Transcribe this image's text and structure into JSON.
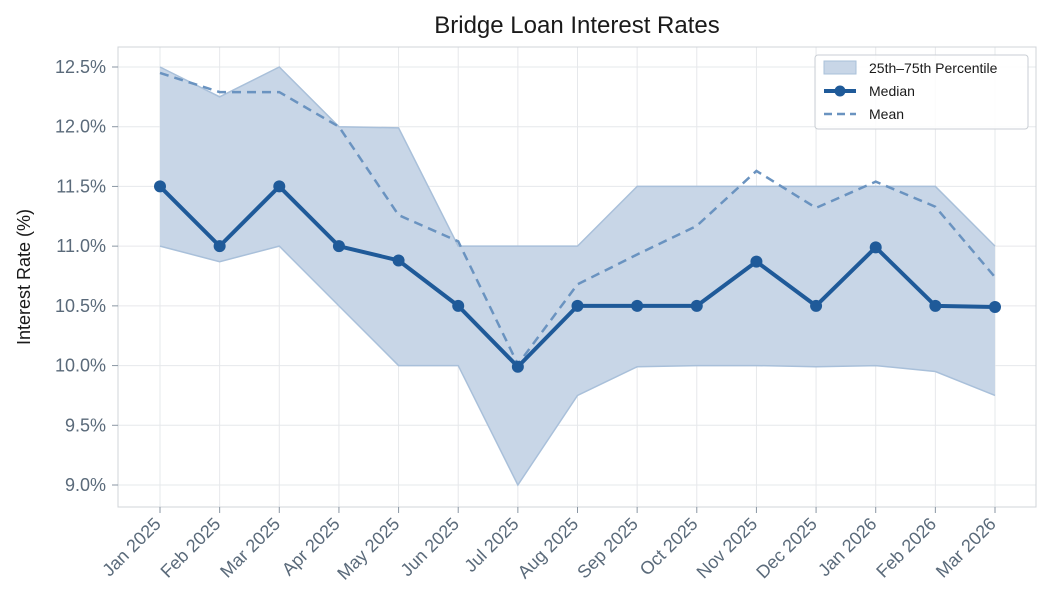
{
  "chart_data": {
    "type": "line",
    "title": "Bridge Loan Interest Rates",
    "xlabel": "",
    "ylabel": "Interest Rate (%)",
    "ylim": [
      8.85,
      12.67
    ],
    "yticks": [
      9.0,
      9.5,
      10.0,
      10.5,
      11.0,
      11.5,
      12.0,
      12.5
    ],
    "ytick_labels": [
      "9.0%",
      "9.5%",
      "10.0%",
      "10.5%",
      "11.0%",
      "11.5%",
      "12.0%",
      "12.5%"
    ],
    "grid": true,
    "legend_position": "top-right",
    "categories": [
      "Jan 2025",
      "Feb 2025",
      "Mar 2025",
      "Apr 2025",
      "May 2025",
      "Jun 2025",
      "Jul 2025",
      "Aug 2025",
      "Sep 2025",
      "Oct 2025",
      "Nov 2025",
      "Dec 2025",
      "Jan 2026",
      "Feb 2026",
      "Mar 2026"
    ],
    "band": {
      "name": "25th–75th Percentile",
      "lower": [
        11.0,
        10.87,
        11.0,
        10.5,
        10.0,
        10.0,
        9.0,
        9.75,
        9.99,
        10.0,
        10.0,
        9.99,
        10.0,
        9.95,
        9.75
      ],
      "upper": [
        12.5,
        12.25,
        12.5,
        12.0,
        11.99,
        11.0,
        11.0,
        11.0,
        11.5,
        11.5,
        11.5,
        11.5,
        11.5,
        11.5,
        11.0
      ],
      "color": "#c8d6e7",
      "edge_color": "#a9c0da"
    },
    "series": [
      {
        "name": "Median",
        "values": [
          11.5,
          11.0,
          11.5,
          11.0,
          10.88,
          10.5,
          9.99,
          10.5,
          10.5,
          10.5,
          10.87,
          10.5,
          10.99,
          10.5,
          10.49
        ],
        "color": "#1f5a99",
        "style": "solid-markers"
      },
      {
        "name": "Mean",
        "values": [
          12.45,
          12.29,
          12.29,
          12.0,
          11.26,
          11.04,
          10.01,
          10.68,
          10.93,
          11.17,
          11.63,
          11.32,
          11.54,
          11.33,
          10.74
        ],
        "color": "#6a93c0",
        "style": "dashed"
      }
    ]
  }
}
